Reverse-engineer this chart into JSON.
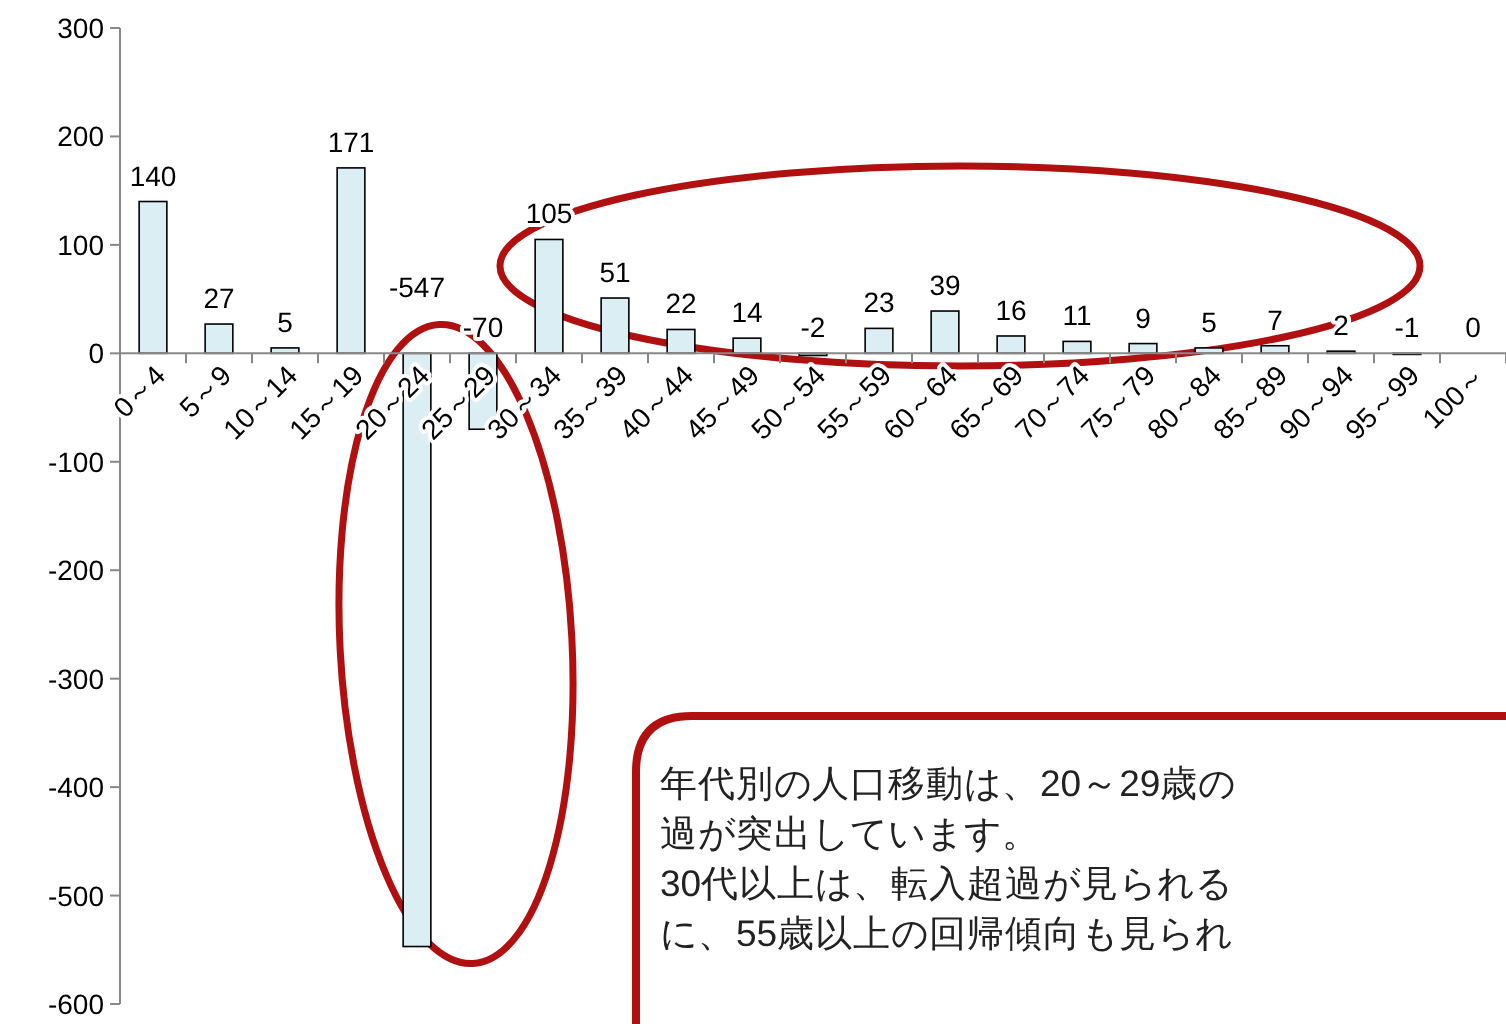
{
  "chart_data": {
    "type": "bar",
    "categories": [
      "0～4",
      "5～9",
      "10～14",
      "15～19",
      "20～24",
      "25～29",
      "30～34",
      "35～39",
      "40～44",
      "45～49",
      "50～54",
      "55～59",
      "60～64",
      "65～69",
      "70～74",
      "75～79",
      "80～84",
      "85～89",
      "90～94",
      "95～99",
      "100～"
    ],
    "values": [
      140,
      27,
      5,
      171,
      -547,
      -70,
      105,
      51,
      22,
      14,
      -2,
      23,
      39,
      16,
      11,
      9,
      5,
      7,
      2,
      -1,
      0
    ],
    "color": "#daeef3",
    "ylim": [
      -600,
      300
    ],
    "yticks": [
      -600,
      -500,
      -400,
      -300,
      -200,
      -100,
      0,
      100,
      200,
      300
    ],
    "data_labels": true,
    "annotations": [
      "年代別の人口移動は、20～29歳の",
      "過が突出しています。",
      "30代以上は、転入超過が見られる",
      "に、55歳以上の回帰傾向も見られ"
    ]
  }
}
